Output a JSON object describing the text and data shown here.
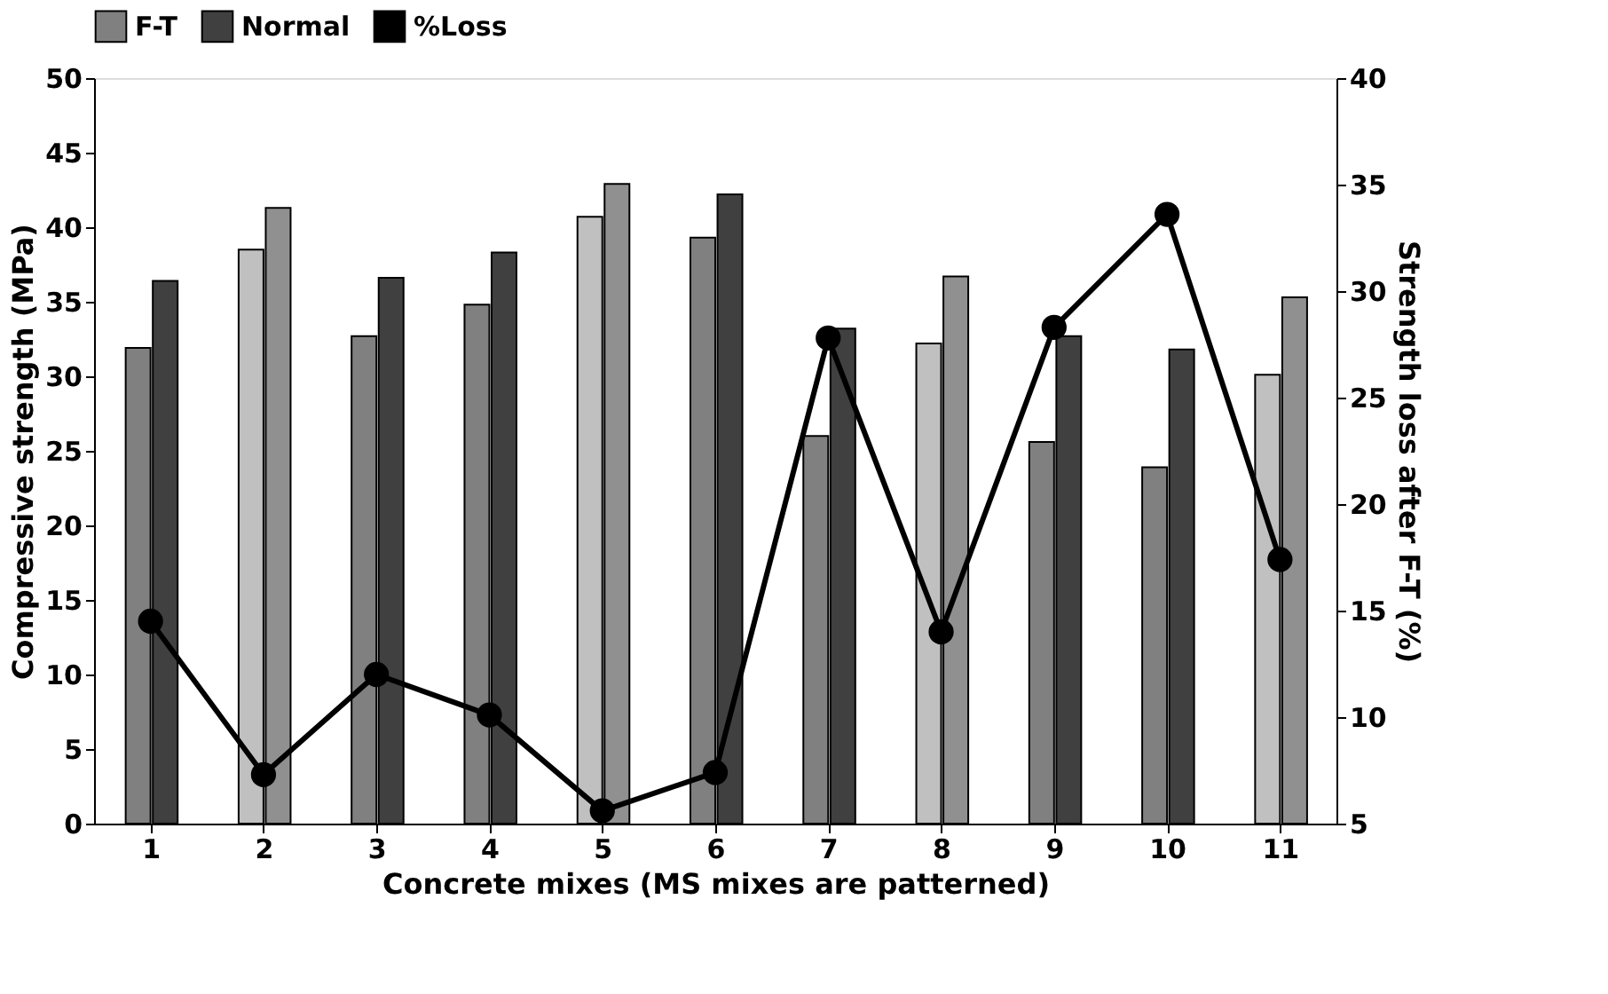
{
  "chart_data": {
    "type": "bar",
    "xlabel": "Concrete mixes (MS mixes are patterned)",
    "ylabel": "Compressive strength (MPa)",
    "y2label": "Strength loss after F-T (%)",
    "categories": [
      "1",
      "2",
      "3",
      "4",
      "5",
      "6",
      "7",
      "8",
      "9",
      "10",
      "11"
    ],
    "series": [
      {
        "name": "F-T",
        "color": "#808080",
        "colors": [
          "#808080",
          "#c0c0c0",
          "#808080",
          "#808080",
          "#c0c0c0",
          "#808080",
          "#808080",
          "#c0c0c0",
          "#808080",
          "#808080",
          "#c0c0c0"
        ],
        "values": [
          31.9,
          38.5,
          32.7,
          34.8,
          40.7,
          39.3,
          26.0,
          32.2,
          25.6,
          23.9,
          30.1
        ]
      },
      {
        "name": "Normal",
        "color": "#404040",
        "colors": [
          "#404040",
          "#909090",
          "#404040",
          "#404040",
          "#909090",
          "#404040",
          "#404040",
          "#909090",
          "#404040",
          "#404040",
          "#909090"
        ],
        "values": [
          36.4,
          41.3,
          36.6,
          38.3,
          42.9,
          42.2,
          33.2,
          36.7,
          32.7,
          31.8,
          35.3
        ]
      },
      {
        "name": "%Loss",
        "type": "line",
        "axis": "y2",
        "color": "#000000",
        "marker": "circle",
        "values": [
          14.5,
          7.3,
          12.0,
          10.1,
          5.6,
          7.4,
          27.8,
          14.0,
          28.3,
          33.6,
          17.4
        ]
      }
    ],
    "ylim": [
      0,
      50
    ],
    "yticks": [
      0,
      5,
      10,
      15,
      20,
      25,
      30,
      35,
      40,
      45,
      50
    ],
    "y2lim": [
      5,
      40
    ],
    "y2ticks": [
      5,
      10,
      15,
      20,
      25,
      30,
      35,
      40
    ],
    "grid": false,
    "legend": "top"
  }
}
